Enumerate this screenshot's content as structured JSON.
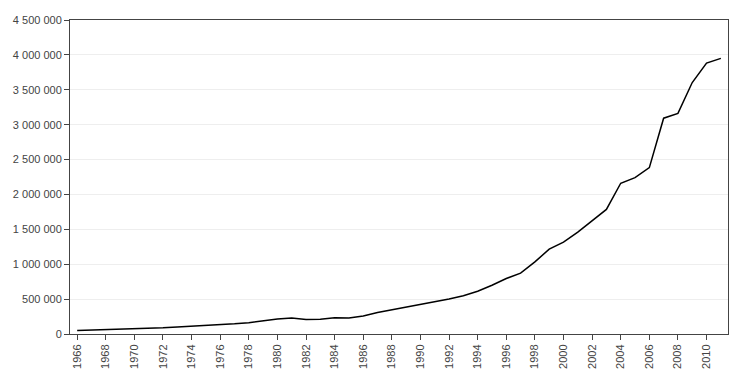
{
  "chart_data": {
    "type": "line",
    "x": [
      1966,
      1967,
      1968,
      1969,
      1970,
      1971,
      1972,
      1973,
      1974,
      1975,
      1976,
      1977,
      1978,
      1979,
      1980,
      1981,
      1982,
      1983,
      1984,
      1985,
      1986,
      1987,
      1988,
      1989,
      1990,
      1991,
      1992,
      1993,
      1994,
      1995,
      1996,
      1997,
      1998,
      1999,
      2000,
      2001,
      2002,
      2003,
      2004,
      2005,
      2006,
      2007,
      2008,
      2009,
      2010,
      2011
    ],
    "values": [
      51792,
      56600,
      61200,
      68100,
      75480,
      82760,
      89900,
      101300,
      110078,
      124050,
      136809,
      145990,
      162727,
      187858,
      215375,
      228348,
      207752,
      212150,
      233411,
      230250,
      259562,
      308800,
      347173,
      381781,
      430521,
      467844,
      502063,
      548620,
      612901,
      699015,
      795205,
      871337,
      1033091,
      1215993,
      1316247,
      1460351,
      1616544,
      1784929,
      2160376,
      2241680,
      2384121,
      3092656,
      3162034,
      3603780,
      3883118,
      3950000
    ],
    "color": "#000000",
    "xlim": [
      1965.5,
      2011.5
    ],
    "xticks": [
      1966,
      1968,
      1970,
      1972,
      1974,
      1976,
      1978,
      1980,
      1982,
      1984,
      1986,
      1988,
      1990,
      1992,
      1994,
      1996,
      1998,
      2000,
      2002,
      2004,
      2006,
      2008,
      2010
    ],
    "ylim": [
      0,
      4500000
    ],
    "yticks": [
      0,
      {
        "value": 500000,
        "label": "500 000"
      },
      {
        "value": 1000000,
        "label": "1 000 000"
      },
      {
        "value": 1500000,
        "label": "1 500 000"
      },
      {
        "value": 2000000,
        "label": "2 000 000"
      },
      {
        "value": 2500000,
        "label": "2 500 000"
      },
      {
        "value": 3000000,
        "label": "3 000 000"
      },
      {
        "value": 3500000,
        "label": "3 500 000"
      },
      {
        "value": 4000000,
        "label": "4 000 000"
      },
      {
        "value": 4500000,
        "label": "4 500 000"
      }
    ],
    "grid": true
  }
}
